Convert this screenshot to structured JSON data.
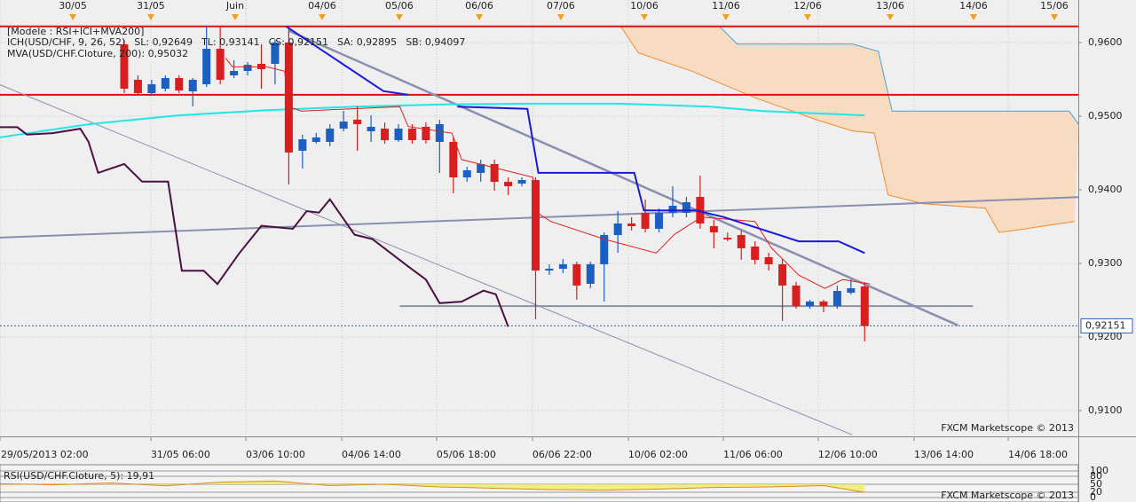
{
  "chart_data": [
    {
      "type": "candlestick",
      "model_label": "[Modele : RSI+ICI+MVA200]",
      "indicator_labels": [
        [
          {
            "text": "ICH(USD/CHF, 9, 26, 52)",
            "color": "#d01414"
          },
          {
            "text": "SL: 0,92649",
            "color": "#d01414"
          },
          {
            "text": "TL: 0,93141",
            "color": "#1a1adc"
          },
          {
            "text": "CS: 0,92151",
            "color": "#4a1040"
          },
          {
            "text": "SA: 0,92895",
            "color": "#f08a30"
          },
          {
            "text": "SB: 0,94097",
            "color": "#2a8ad0"
          }
        ],
        [
          {
            "text": "MVA(USD/CHF.Cloture, 200): 0,95032",
            "color": "#18c8c8"
          }
        ]
      ],
      "watermark": "FXCM Marketscope © 2013",
      "xlim": [
        -9.06,
        69.58
      ],
      "ylim": [
        0.9065,
        0.96578
      ],
      "yticks": [
        {
          "value": 0.91,
          "label": "0,9100"
        },
        {
          "value": 0.92,
          "label": "0,9200"
        },
        {
          "value": 0.93,
          "label": "0,9300"
        },
        {
          "value": 0.94,
          "label": "0,9400"
        },
        {
          "value": 0.95,
          "label": "0,9500"
        },
        {
          "value": 0.96,
          "label": "0,9600"
        }
      ],
      "xticks": [
        {
          "value": -9.06,
          "label": "29/05/2013 02:00"
        },
        {
          "value": 1.94,
          "label": "31/05 06:00"
        },
        {
          "value": 8.87,
          "label": "03/06 10:00"
        },
        {
          "value": 15.86,
          "label": "04/06 14:00"
        },
        {
          "value": 22.78,
          "label": "05/06 18:00"
        },
        {
          "value": 29.77,
          "label": "06/06 22:00"
        },
        {
          "value": 36.76,
          "label": "10/06 02:00"
        },
        {
          "value": 43.69,
          "label": "11/06 06:00"
        },
        {
          "value": 50.61,
          "label": "12/06 10:00"
        },
        {
          "value": 57.61,
          "label": "13/06 14:00"
        },
        {
          "value": 64.47,
          "label": "14/06 18:00"
        }
      ],
      "day_ticks": [
        {
          "value": -3.75,
          "label": "30/05"
        },
        {
          "value": 1.94,
          "label": "31/05"
        },
        {
          "value": 8.09,
          "label": "Juin"
        },
        {
          "value": 14.43,
          "label": "04/06"
        },
        {
          "value": 20.06,
          "label": "05/06"
        },
        {
          "value": 25.89,
          "label": "06/06"
        },
        {
          "value": 31.84,
          "label": "07/06"
        },
        {
          "value": 37.93,
          "label": "10/06"
        },
        {
          "value": 43.88,
          "label": "11/06"
        },
        {
          "value": 49.84,
          "label": "12/06"
        },
        {
          "value": 55.86,
          "label": "13/06"
        },
        {
          "value": 61.94,
          "label": "14/06"
        },
        {
          "value": 67.83,
          "label": "15/06"
        }
      ],
      "grid": true,
      "candles": {
        "up_color": "#1c5fc0",
        "down_color": "#d81e1e",
        "open": [
          0.95976,
          0.95494,
          0.95313,
          0.95373,
          0.95518,
          0.95337,
          0.95433,
          0.95915,
          0.95554,
          0.95614,
          0.95711,
          0.95711,
          0.96,
          0.9453,
          0.9465,
          0.9465,
          0.94831,
          0.94952,
          0.94795,
          0.94831,
          0.94674,
          0.94831,
          0.94855,
          0.9465,
          0.9465,
          0.94168,
          0.94229,
          0.94349,
          0.94108,
          0.94084,
          0.94132,
          0.92903,
          0.92927,
          0.92988,
          0.92723,
          0.92988,
          0.93385,
          0.93542,
          0.93686,
          0.9347,
          0.93686,
          0.93686,
          0.93903,
          0.93506,
          0.93349,
          0.93385,
          0.93229,
          0.93084,
          0.92988,
          0.92699,
          0.92421,
          0.92482,
          0.92421,
          0.92602,
          0.92687
        ],
        "high": [
          0.96036,
          0.95554,
          0.95494,
          0.95554,
          0.95554,
          0.95518,
          0.96217,
          0.96217,
          0.95759,
          0.95735,
          0.95976,
          0.96036,
          0.96217,
          0.94747,
          0.94771,
          0.94891,
          0.95072,
          0.95132,
          0.95012,
          0.94915,
          0.94891,
          0.94891,
          0.94915,
          0.94952,
          0.94711,
          0.94313,
          0.94409,
          0.94409,
          0.94168,
          0.94168,
          0.94168,
          0.92988,
          0.9306,
          0.93024,
          0.93024,
          0.93421,
          0.93711,
          0.93626,
          0.93867,
          0.93747,
          0.94048,
          0.93903,
          0.94193,
          0.9359,
          0.93421,
          0.93446,
          0.93301,
          0.93144,
          0.9306,
          0.92747,
          0.92506,
          0.92506,
          0.92699,
          0.92783,
          0.92747
        ],
        "low": [
          0.95313,
          0.95277,
          0.95277,
          0.95337,
          0.95313,
          0.95132,
          0.95397,
          0.95433,
          0.95518,
          0.95554,
          0.95373,
          0.95433,
          0.94072,
          0.94289,
          0.94626,
          0.9459,
          0.94795,
          0.9453,
          0.9465,
          0.94626,
          0.9465,
          0.94626,
          0.94626,
          0.94229,
          0.93952,
          0.94108,
          0.94108,
          0.93988,
          0.93927,
          0.94048,
          0.92241,
          0.92843,
          0.92867,
          0.92506,
          0.92662,
          0.92482,
          0.93144,
          0.93446,
          0.93421,
          0.93421,
          0.93626,
          0.93626,
          0.9347,
          0.93205,
          0.93301,
          0.93048,
          0.92988,
          0.92903,
          0.92217,
          0.92385,
          0.92385,
          0.92337,
          0.92385,
          0.92578,
          0.9194
        ],
        "close": [
          0.95373,
          0.95313,
          0.95433,
          0.95518,
          0.95349,
          0.95494,
          0.95915,
          0.95494,
          0.95614,
          0.95698,
          0.95638,
          0.96,
          0.94506,
          0.94686,
          0.94711,
          0.94831,
          0.94927,
          0.94891,
          0.94855,
          0.94674,
          0.94831,
          0.94674,
          0.94674,
          0.94891,
          0.94168,
          0.94265,
          0.94349,
          0.94108,
          0.94048,
          0.94132,
          0.92903,
          0.92927,
          0.92988,
          0.92699,
          0.92988,
          0.93385,
          0.93542,
          0.93506,
          0.9347,
          0.93686,
          0.93783,
          0.93831,
          0.93542,
          0.93421,
          0.93325,
          0.93205,
          0.93048,
          0.92988,
          0.92699,
          0.92421,
          0.92482,
          0.92421,
          0.92626,
          0.92662,
          0.92151
        ]
      },
      "cloud": {
        "fill": "#f8dcc2",
        "span_a": {
          "color": "#f08a30",
          "x": [
            29.1,
            36.2,
            37.5,
            41.4,
            46,
            50.5,
            53.1,
            54.7,
            55.7,
            58.3,
            62.8,
            63.8,
            65,
            69.3
          ],
          "values": [
            0.9622,
            0.9622,
            0.9586,
            0.9561,
            0.9525,
            0.9495,
            0.948,
            0.9477,
            0.9393,
            0.9381,
            0.9375,
            0.9342,
            0.9345,
            0.9357
          ]
        },
        "span_b": {
          "color": "#4aa0d8",
          "x": [
            29.1,
            43.4,
            44.7,
            53.1,
            55,
            56,
            68.9,
            69.6
          ],
          "values": [
            0.9622,
            0.9622,
            0.9598,
            0.9598,
            0.9588,
            0.9507,
            0.9507,
            0.9489
          ]
        }
      },
      "levels": [
        {
          "value": 0.9622,
          "color": "#e01010"
        },
        {
          "value": 0.9529,
          "color": "#e01010"
        }
      ],
      "last_price": {
        "value": 0.92151,
        "label": "0,92151",
        "color": "#3060c0"
      },
      "overlays": [
        {
          "color": "#8a8fb0",
          "width": 1,
          "x": [
            -9.1,
            53.1
          ],
          "values": [
            0.9543,
            0.9067
          ]
        },
        {
          "color": "#8a8fb0",
          "width": 2,
          "x": [
            -9.1,
            69.6
          ],
          "values": [
            0.9335,
            0.939
          ]
        },
        {
          "color": "#8a8fb0",
          "width": 2,
          "x": [
            20.1,
            61.9
          ],
          "values": [
            0.9242,
            0.9242
          ]
        },
        {
          "color": "#8a8fb0",
          "width": 2.5,
          "x": [
            12,
            60.8
          ],
          "values": [
            0.9616,
            0.9216
          ]
        },
        {
          "color": "#22e6e6",
          "width": 2,
          "x": [
            -9.1,
            -2.6,
            3.9,
            10.4,
            16.8,
            23.3,
            29.8,
            36.2,
            42.7,
            46.6,
            54
          ],
          "values": [
            0.9471,
            0.9489,
            0.9501,
            0.9508,
            0.9513,
            0.9516,
            0.9517,
            0.9517,
            0.9513,
            0.9507,
            0.9501
          ]
        },
        {
          "color": "#4a1040",
          "width": 2,
          "x": [
            -9.1,
            -7.8,
            -7.1,
            -5.2,
            -3.2,
            -2.6,
            -1.9,
            0,
            1.3,
            3.2,
            4.2,
            5.8,
            6.8,
            8.4,
            10,
            12.3,
            13.3,
            14.2,
            15,
            15.9,
            16.8,
            18.1,
            20.7,
            22,
            23,
            24.6,
            26.2,
            27.1,
            28
          ],
          "values": [
            0.9485,
            0.9485,
            0.9475,
            0.9477,
            0.9483,
            0.9465,
            0.9423,
            0.9435,
            0.9411,
            0.9411,
            0.929,
            0.929,
            0.9272,
            0.9314,
            0.9351,
            0.9347,
            0.9371,
            0.9369,
            0.9387,
            0.9363,
            0.9339,
            0.9333,
            0.9296,
            0.9278,
            0.9246,
            0.9248,
            0.9263,
            0.9258,
            0.9214
          ]
        },
        {
          "color": "#e02020",
          "width": 1,
          "x": [
            7.4,
            7.9,
            10.4,
            11.7,
            12,
            12.9,
            20.1,
            20.7,
            23.9,
            24.6,
            29.8,
            30.1,
            31.1,
            35,
            38.8,
            40.1,
            42.1,
            46,
            47.2,
            49.2,
            51.1,
            52.4,
            54.4
          ],
          "values": [
            0.9579,
            0.9567,
            0.9567,
            0.9561,
            0.9513,
            0.9507,
            0.9513,
            0.9486,
            0.9477,
            0.9441,
            0.9417,
            0.9369,
            0.9357,
            0.9333,
            0.9314,
            0.9339,
            0.9363,
            0.9357,
            0.9321,
            0.9284,
            0.9266,
            0.9278,
            0.9272
          ]
        },
        {
          "color": "#1a1adc",
          "width": 2,
          "x": [
            11.8,
            18.9,
            20.7,
            null,
            24.3,
            29.4,
            30.2,
            37.2,
            37.9,
            41.7,
            43.7,
            49.2,
            52.1,
            54
          ],
          "values": [
            0.9622,
            0.9534,
            0.9529,
            null,
            0.9513,
            0.951,
            0.9423,
            0.9423,
            0.9372,
            0.9372,
            0.9363,
            0.933,
            0.933,
            0.9314
          ]
        }
      ]
    },
    {
      "type": "line",
      "title": "RSI(USD/CHF.Cloture, 5): 19,91",
      "watermark": "FXCM Marketscope © 2013",
      "ylim": [
        0,
        100
      ],
      "yticks": [
        0,
        20,
        50,
        80,
        100
      ],
      "color": "#e08a20",
      "fill": "#f0ee60",
      "x": [
        -9,
        -5,
        -1,
        3,
        7,
        11,
        15,
        19,
        23,
        27,
        31,
        35,
        39,
        43,
        47,
        51,
        54
      ],
      "values": [
        52,
        48,
        55,
        44,
        58,
        62,
        45,
        50,
        40,
        35,
        30,
        28,
        32,
        38,
        40,
        45,
        19.91
      ]
    }
  ]
}
